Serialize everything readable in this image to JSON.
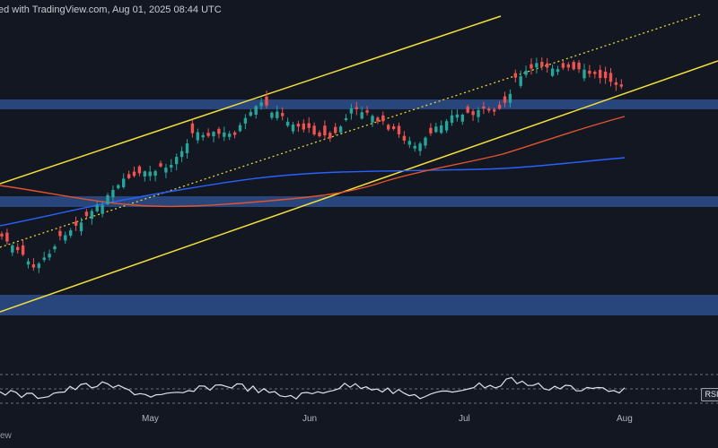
{
  "header": {
    "text": "ed with TradingView.com, Aug 01, 2025 08:44 UTC"
  },
  "footer": {
    "watermark": "ew"
  },
  "rsi": {
    "tag": "RSI"
  },
  "colors": {
    "background": "#131722",
    "candle_up": "#26a69a",
    "candle_down": "#ef5350",
    "ema_long": "#2962ff",
    "ema_short": "#e2532f",
    "channel": "#f5e03a",
    "zone": "#2b4a86",
    "rsi_line": "#e0e3eb"
  },
  "chart_data": {
    "type": "candlestick",
    "x_ticks": [
      "May",
      "Jun",
      "Jul",
      "Aug"
    ],
    "overlays": [
      "ascending channel",
      "channel midline (dotted)",
      "orange moving average",
      "blue moving average",
      "3 horizontal support/resistance zones"
    ],
    "indicator": "RSI"
  }
}
